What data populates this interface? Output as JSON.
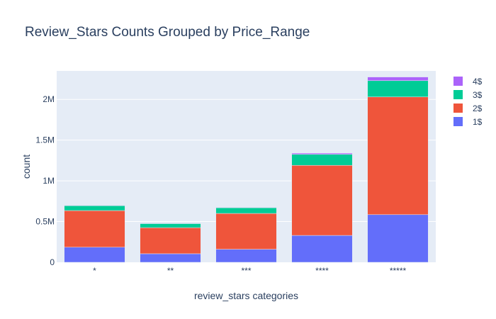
{
  "chart_data": {
    "type": "bar",
    "barmode": "stack",
    "title": "Review_Stars Counts Grouped by Price_Range",
    "xlabel": "review_stars categories",
    "ylabel": "count",
    "categories": [
      "*",
      "**",
      "***",
      "****",
      "*****"
    ],
    "ylim": [
      0,
      2350000
    ],
    "yticks": [
      {
        "value": 0,
        "label": "0"
      },
      {
        "value": 500000,
        "label": "0.5M"
      },
      {
        "value": 1000000,
        "label": "1M"
      },
      {
        "value": 1500000,
        "label": "1.5M"
      },
      {
        "value": 2000000,
        "label": "2M"
      }
    ],
    "series": [
      {
        "name": "1$",
        "color": "#636efa",
        "values": [
          185000,
          105000,
          160000,
          330000,
          585000
        ]
      },
      {
        "name": "2$",
        "color": "#ef553b",
        "values": [
          450000,
          320000,
          440000,
          860000,
          1445000
        ]
      },
      {
        "name": "3$",
        "color": "#00cc96",
        "values": [
          60000,
          50000,
          70000,
          135000,
          200000
        ]
      },
      {
        "name": "4$",
        "color": "#ab63fa",
        "values": [
          5000,
          5000,
          5000,
          15000,
          45000
        ]
      }
    ],
    "legend": "top-right",
    "grid": true
  }
}
